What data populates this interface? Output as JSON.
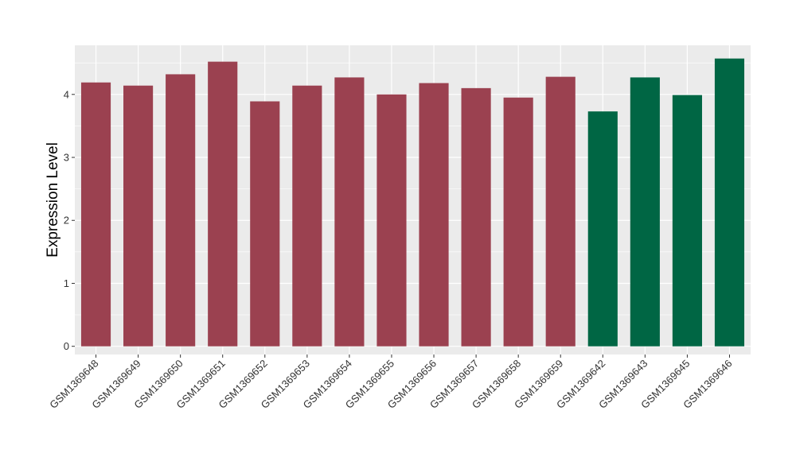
{
  "chart_data": {
    "type": "bar",
    "title": "",
    "xlabel": "",
    "ylabel": "Expression Level",
    "ylim": [
      -0.13,
      4.78
    ],
    "yticks": [
      0,
      1,
      2,
      3,
      4
    ],
    "ytick_labels": [
      "0",
      "1",
      "2",
      "3",
      "4"
    ],
    "grid": true,
    "legend": "none",
    "colors": {
      "group_a": "#9b4150",
      "group_b": "#006644",
      "panel_bg": "#ebebeb",
      "grid": "#ffffff"
    },
    "categories": [
      "GSM1369648",
      "GSM1369649",
      "GSM1369650",
      "GSM1369651",
      "GSM1369652",
      "GSM1369653",
      "GSM1369654",
      "GSM1369655",
      "GSM1369656",
      "GSM1369657",
      "GSM1369658",
      "GSM1369659",
      "GSM1369642",
      "GSM1369643",
      "GSM1369645",
      "GSM1369646"
    ],
    "values": [
      4.19,
      4.14,
      4.32,
      4.52,
      3.89,
      4.14,
      4.27,
      4.0,
      4.18,
      4.1,
      3.95,
      4.28,
      3.73,
      4.27,
      3.99,
      4.57
    ],
    "bar_colors": [
      "#9b4150",
      "#9b4150",
      "#9b4150",
      "#9b4150",
      "#9b4150",
      "#9b4150",
      "#9b4150",
      "#9b4150",
      "#9b4150",
      "#9b4150",
      "#9b4150",
      "#9b4150",
      "#006644",
      "#006644",
      "#006644",
      "#006644"
    ]
  }
}
